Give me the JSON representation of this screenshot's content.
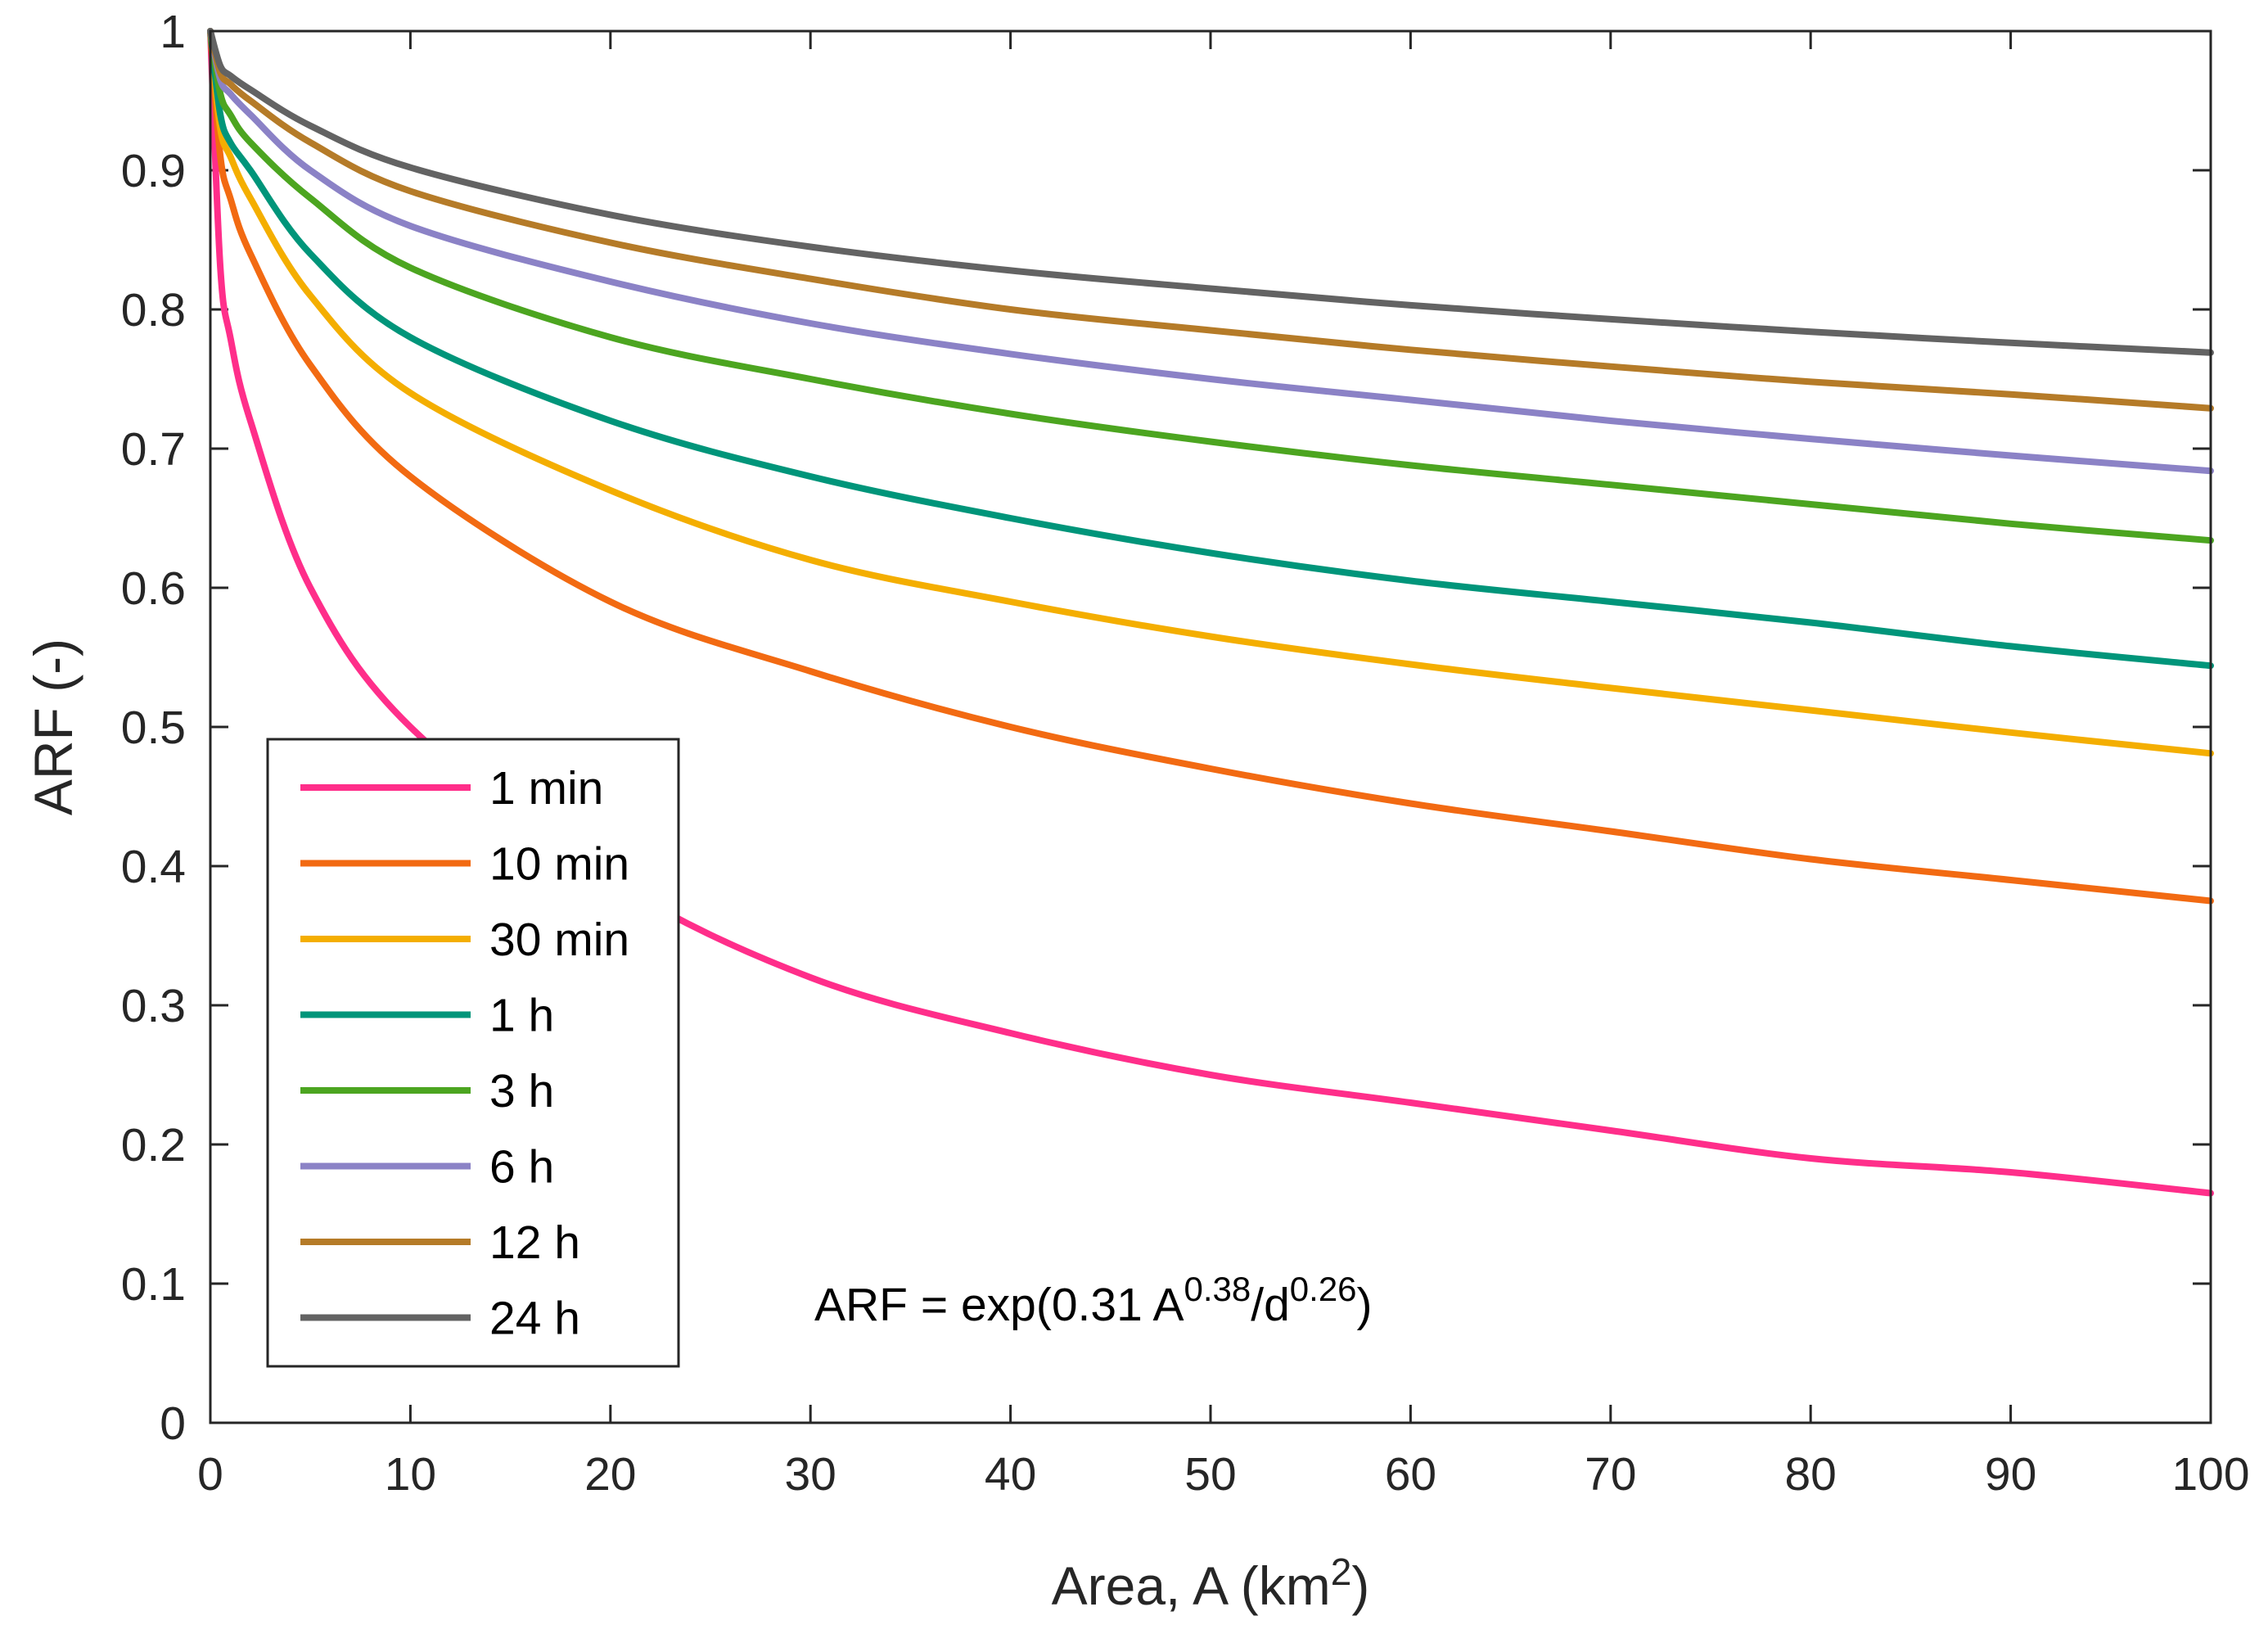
{
  "chart_data": {
    "type": "line",
    "title": "",
    "xlabel": {
      "text": "Area, A (km",
      "superscript": "2",
      "suffix": ")"
    },
    "ylabel": "ARF (-)",
    "xlim": [
      0,
      100
    ],
    "ylim": [
      0,
      1
    ],
    "xticks": [
      0,
      10,
      20,
      30,
      40,
      50,
      60,
      70,
      80,
      90,
      100
    ],
    "xtick_labels": [
      "0",
      "10",
      "20",
      "30",
      "40",
      "50",
      "60",
      "70",
      "80",
      "90",
      "100"
    ],
    "yticks": [
      0,
      0.1,
      0.2,
      0.3,
      0.4,
      0.5,
      0.6,
      0.7,
      0.8,
      0.9,
      1
    ],
    "ytick_labels": [
      "0",
      "0.1",
      "0.2",
      "0.3",
      "0.4",
      "0.5",
      "0.6",
      "0.7",
      "0.8",
      "0.9",
      "1"
    ],
    "grid": false,
    "legend_position": "bottom-left",
    "annotation": {
      "parts": [
        {
          "text": "ARF = exp(0.31 A",
          "sup": false
        },
        {
          "text": "0.38",
          "sup": true
        },
        {
          "text": "/d",
          "sup": false
        },
        {
          "text": "0.26",
          "sup": true
        },
        {
          "text": ")",
          "sup": false
        }
      ]
    },
    "x": [
      0,
      0.5,
      1,
      2,
      5,
      10,
      20,
      30,
      40,
      50,
      60,
      70,
      80,
      90,
      100
    ],
    "series": [
      {
        "name": "1 min",
        "color": "#ff2e8a",
        "values": [
          1.0,
          0.83,
          0.78,
          0.72,
          0.6,
          0.5,
          0.39,
          0.32,
          0.28,
          0.25,
          0.23,
          0.21,
          0.19,
          0.18,
          0.165
        ]
      },
      {
        "name": "10 min",
        "color": "#f26a12",
        "values": [
          1.0,
          0.91,
          0.88,
          0.84,
          0.76,
          0.68,
          0.59,
          0.54,
          0.5,
          0.47,
          0.445,
          0.425,
          0.405,
          0.39,
          0.375
        ]
      },
      {
        "name": "30 min",
        "color": "#f4ae00",
        "values": [
          1.0,
          0.93,
          0.91,
          0.88,
          0.81,
          0.74,
          0.67,
          0.62,
          0.59,
          0.565,
          0.545,
          0.528,
          0.512,
          0.496,
          0.481
        ]
      },
      {
        "name": "1 h",
        "color": "#00957a",
        "values": [
          1.0,
          0.94,
          0.92,
          0.9,
          0.84,
          0.78,
          0.72,
          0.68,
          0.65,
          0.625,
          0.605,
          0.59,
          0.575,
          0.558,
          0.544
        ]
      },
      {
        "name": "3 h",
        "color": "#4ca520",
        "values": [
          1.0,
          0.955,
          0.94,
          0.92,
          0.88,
          0.83,
          0.78,
          0.75,
          0.725,
          0.705,
          0.688,
          0.674,
          0.66,
          0.646,
          0.634
        ]
      },
      {
        "name": "6 h",
        "color": "#8b82c6",
        "values": [
          1.0,
          0.965,
          0.955,
          0.94,
          0.9,
          0.86,
          0.82,
          0.79,
          0.768,
          0.75,
          0.735,
          0.72,
          0.707,
          0.695,
          0.684
        ]
      },
      {
        "name": "12 h",
        "color": "#b57b28",
        "values": [
          1.0,
          0.97,
          0.962,
          0.95,
          0.92,
          0.885,
          0.848,
          0.822,
          0.8,
          0.785,
          0.771,
          0.759,
          0.748,
          0.739,
          0.729
        ]
      },
      {
        "name": "24 h",
        "color": "#636363",
        "values": [
          1.0,
          0.975,
          0.968,
          0.958,
          0.932,
          0.902,
          0.868,
          0.845,
          0.828,
          0.815,
          0.803,
          0.793,
          0.784,
          0.776,
          0.769
        ]
      }
    ]
  }
}
